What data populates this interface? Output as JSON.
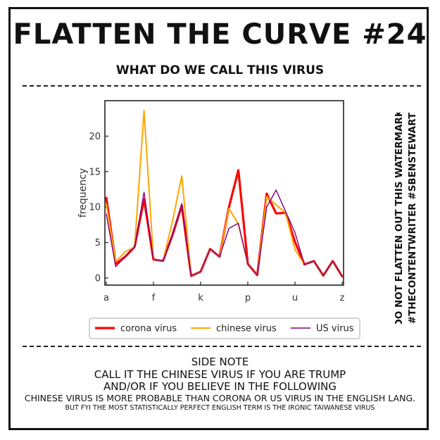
{
  "header": {
    "title": "FLATTEN THE CURVE #24",
    "subtitle": "WHAT DO WE CALL THIS VIRUS"
  },
  "watermark": {
    "line1": "DO NOT FLATTEN OUT THIS WATERMARK",
    "line2": "#THECONTENTWRITER #SBENSTEWART"
  },
  "notes": {
    "line1": "SIDE NOTE",
    "line2": "CALL IT THE CHINESE VIRUS IF YOU ARE TRUMP",
    "line3": "AND/OR IF YOU BELIEVE IN THE FOLLOWING",
    "line4": "CHINESE VIRUS IS MORE PROBABLE THAN CORONA OR US VIRUS IN THE ENGLISH LANG.",
    "line5": "BUT FYI THE MOST STATISTICALLY PERFECT ENGLISH TERM IS THE IRONIC TAIWANESE VIRUS"
  },
  "chart_data": {
    "type": "line",
    "x": [
      "a",
      "b",
      "c",
      "d",
      "e",
      "f",
      "g",
      "h",
      "i",
      "j",
      "k",
      "l",
      "m",
      "n",
      "o",
      "p",
      "q",
      "r",
      "s",
      "t",
      "u",
      "v",
      "w",
      "x",
      "y",
      "z"
    ],
    "x_tick_labels": [
      "a",
      "f",
      "k",
      "p",
      "u",
      "z"
    ],
    "ylabel": "frequency",
    "y_ticks": [
      0,
      5,
      10,
      15,
      20
    ],
    "ylim": [
      -1,
      25
    ],
    "grid": false,
    "legend_position": "bottom",
    "series": [
      {
        "name": "corona virus",
        "color": "#ff0000",
        "values": [
          11.3,
          2.0,
          3.0,
          4.4,
          11.1,
          2.6,
          2.4,
          6.0,
          10.2,
          0.3,
          0.9,
          4.1,
          3.0,
          10.0,
          15.2,
          2.0,
          0.4,
          11.9,
          9.1,
          9.2,
          5.1,
          1.9,
          2.4,
          0.3,
          2.4,
          0.2
        ]
      },
      {
        "name": "chinese virus",
        "color": "#ffa500",
        "values": [
          10.4,
          2.3,
          3.7,
          4.4,
          23.6,
          2.6,
          2.4,
          7.9,
          14.4,
          0.3,
          0.9,
          4.1,
          3.0,
          9.8,
          7.6,
          2.0,
          0.4,
          11.5,
          10.3,
          9.2,
          4.0,
          1.9,
          2.4,
          0.2,
          2.4,
          0.1
        ]
      },
      {
        "name": "US virus",
        "color": "#800080",
        "values": [
          9.0,
          1.6,
          3.0,
          4.4,
          12.1,
          2.6,
          2.4,
          6.0,
          10.5,
          0.3,
          0.9,
          4.1,
          3.0,
          7.0,
          7.7,
          2.0,
          0.4,
          10.0,
          12.4,
          9.4,
          6.4,
          1.9,
          2.4,
          0.3,
          2.4,
          0.2
        ]
      }
    ]
  }
}
